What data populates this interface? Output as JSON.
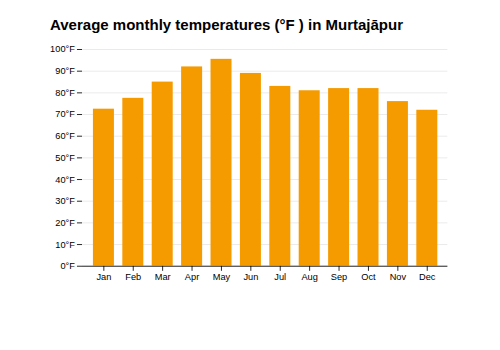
{
  "chart_data": {
    "type": "bar",
    "title": "Average monthly temperatures (°F ) in Murtajāpur",
    "categories": [
      "Jan",
      "Feb",
      "Mar",
      "Apr",
      "May",
      "Jun",
      "Jul",
      "Aug",
      "Sep",
      "Oct",
      "Nov",
      "Dec"
    ],
    "values": [
      72.5,
      77.5,
      85.0,
      92.0,
      95.5,
      89.0,
      83.0,
      81.0,
      82.0,
      82.0,
      76.0,
      72.0
    ],
    "color": "#F59B00",
    "ylim": [
      0,
      100
    ],
    "yticks": [
      {
        "value": 0,
        "label": "0°F"
      },
      {
        "value": 10,
        "label": "10°F"
      },
      {
        "value": 20,
        "label": "20°F"
      },
      {
        "value": 30,
        "label": "30°F"
      },
      {
        "value": 40,
        "label": "40°F"
      },
      {
        "value": 50,
        "label": "50°F"
      },
      {
        "value": 60,
        "label": "60°F"
      },
      {
        "value": 70,
        "label": "70°F"
      },
      {
        "value": 80,
        "label": "80°F"
      },
      {
        "value": 90,
        "label": "90°F"
      },
      {
        "value": 100,
        "label": "100°F"
      }
    ],
    "grid": true
  }
}
